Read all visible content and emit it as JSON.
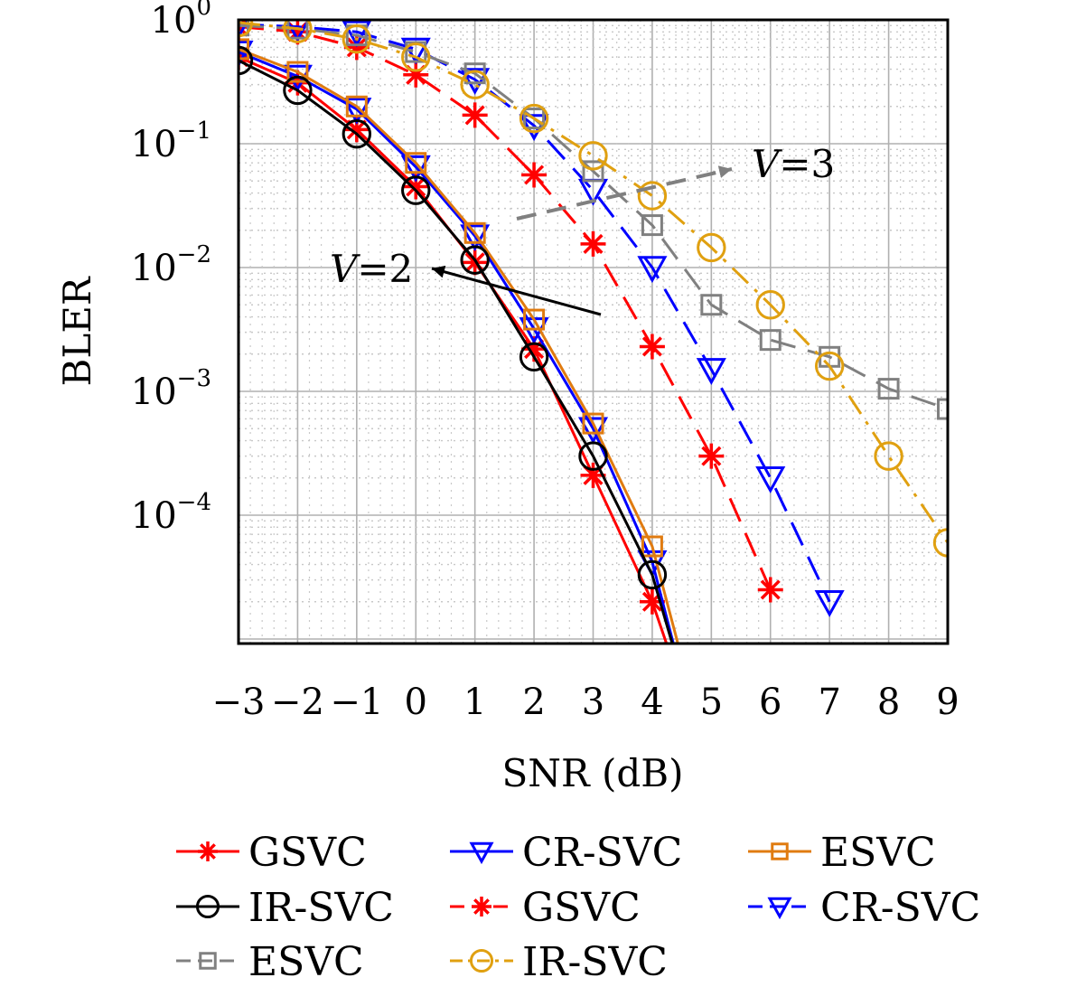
{
  "chart_data": {
    "type": "line",
    "xlabel": "SNR (dB)",
    "ylabel": "BLER",
    "xlim": [
      -3,
      9
    ],
    "ylim": [
      1e-05,
      1
    ],
    "yscale": "log",
    "grid": true,
    "legend_placement": "bottom",
    "x_ticks": [
      "−3",
      "−2",
      "−1",
      "0",
      "1",
      "2",
      "3",
      "4",
      "5",
      "6",
      "7",
      "8",
      "9"
    ],
    "y_ticks": [
      {
        "base": "10",
        "exp": "0"
      },
      {
        "base": "10",
        "exp": "−1"
      },
      {
        "base": "10",
        "exp": "−2"
      },
      {
        "base": "10",
        "exp": "−3"
      },
      {
        "base": "10",
        "exp": "−4"
      }
    ],
    "annotations": [
      {
        "italic": "V",
        "rest": "=3"
      },
      {
        "italic": "V",
        "rest": "=2"
      }
    ],
    "series": [
      {
        "name": "GSVC",
        "color": "#ff0000",
        "dash": "solid",
        "marker": "star",
        "x": [
          -3,
          -2,
          -1,
          0,
          1,
          2,
          3,
          4,
          4.5
        ],
        "y": [
          0.5,
          0.31,
          0.13,
          0.045,
          0.011,
          0.0022,
          0.00021,
          2e-05,
          4e-06
        ]
      },
      {
        "name": "CR-SVC",
        "color": "#0000ff",
        "dash": "solid",
        "marker": "triangle-down",
        "x": [
          -3,
          -2,
          -1,
          0,
          1,
          2,
          3,
          4,
          4.5
        ],
        "y": [
          0.55,
          0.35,
          0.19,
          0.065,
          0.018,
          0.0032,
          0.0005,
          4.2e-05,
          5e-06
        ]
      },
      {
        "name": "ESVC",
        "color": "#e07b10",
        "dash": "solid",
        "marker": "square",
        "x": [
          -3,
          -2,
          -1,
          0,
          1,
          2,
          3,
          4,
          4.5
        ],
        "y": [
          0.58,
          0.38,
          0.2,
          0.07,
          0.019,
          0.0038,
          0.00055,
          5.6e-05,
          7e-06
        ]
      },
      {
        "name": "IR-SVC",
        "color": "#000000",
        "dash": "solid",
        "marker": "circle",
        "x": [
          -3,
          -2,
          -1,
          0,
          1,
          2,
          3,
          4,
          4.5
        ],
        "y": [
          0.47,
          0.27,
          0.12,
          0.042,
          0.0115,
          0.0019,
          0.0003,
          3.3e-05,
          5e-06
        ]
      },
      {
        "name": "GSVC",
        "color": "#ff0000",
        "dash": "dashed",
        "marker": "star",
        "x": [
          -3,
          -2,
          -1,
          0,
          1,
          2,
          3,
          4,
          5,
          6
        ],
        "y": [
          0.88,
          0.8,
          0.6,
          0.36,
          0.17,
          0.056,
          0.0155,
          0.0023,
          0.0003,
          2.5e-05
        ]
      },
      {
        "name": "CR-SVC",
        "color": "#0000ff",
        "dash": "dashed",
        "marker": "triangle-down",
        "x": [
          -3,
          -2,
          -1,
          0,
          1,
          2,
          3,
          4,
          5,
          6,
          7
        ],
        "y": [
          0.92,
          0.88,
          0.8,
          0.58,
          0.33,
          0.14,
          0.042,
          0.01,
          0.0015,
          0.0002,
          2e-05
        ]
      },
      {
        "name": "ESVC",
        "color": "#808080",
        "dash": "dashed",
        "marker": "square",
        "x": [
          -3,
          -2,
          -1,
          0,
          1,
          2,
          3,
          4,
          5,
          6,
          7,
          8,
          9
        ],
        "y": [
          0.9,
          0.85,
          0.75,
          0.55,
          0.37,
          0.16,
          0.06,
          0.022,
          0.005,
          0.0026,
          0.0019,
          0.00105,
          0.00072
        ]
      },
      {
        "name": "IR-SVC",
        "color": "#e0a010",
        "dash": "dashdot",
        "marker": "circle",
        "x": [
          -3,
          -2,
          -1,
          0,
          1,
          2,
          3,
          4,
          5,
          6,
          7,
          8,
          9
        ],
        "y": [
          0.95,
          0.85,
          0.7,
          0.5,
          0.3,
          0.16,
          0.08,
          0.038,
          0.0145,
          0.005,
          0.0016,
          0.0003,
          6e-05
        ]
      }
    ]
  }
}
